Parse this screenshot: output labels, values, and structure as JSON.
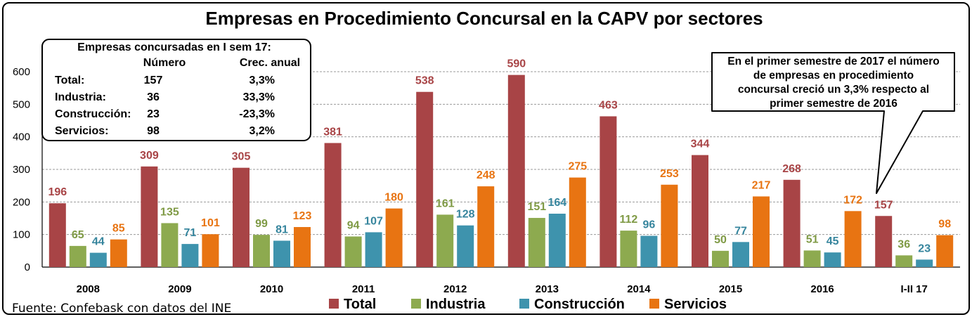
{
  "chart_data": {
    "type": "bar",
    "title": "Empresas en Procedimiento Concursal en la CAPV por sectores",
    "categories": [
      "2008",
      "2009",
      "2010",
      "2011",
      "2012",
      "2013",
      "2014",
      "2015",
      "2016",
      "I-II 17"
    ],
    "series": [
      {
        "name": "Total",
        "color": "#a84446",
        "values": [
          196,
          309,
          305,
          381,
          538,
          590,
          463,
          344,
          268,
          157
        ]
      },
      {
        "name": "Industria",
        "color": "#8daa4f",
        "values": [
          65,
          135,
          99,
          94,
          161,
          151,
          112,
          50,
          51,
          36
        ]
      },
      {
        "name": "Construcción",
        "color": "#3e93ad",
        "values": [
          44,
          71,
          81,
          107,
          128,
          164,
          96,
          77,
          45,
          23
        ]
      },
      {
        "name": "Servicios",
        "color": "#e87412",
        "values": [
          85,
          101,
          123,
          180,
          248,
          275,
          253,
          217,
          172,
          98
        ]
      }
    ],
    "label_colors": [
      "#a84446",
      "#7f9a45",
      "#36859d",
      "#e87412"
    ],
    "yticks": [
      "0",
      "100",
      "200",
      "300",
      "400",
      "500",
      "600"
    ],
    "ylim": [
      0,
      600
    ],
    "grid": true,
    "legend_position": "bottom"
  },
  "source": "Fuente: Confebask con datos del INE",
  "summary_box": {
    "heading": "Empresas concursadas en I sem 17:",
    "col_numero": "Número",
    "col_crec": "Crec. anual",
    "rows": [
      {
        "label": "Total:",
        "numero": "157",
        "crec": "3,3%"
      },
      {
        "label": "Industria:",
        "numero": "36",
        "crec": "33,3%"
      },
      {
        "label": "Construcción:",
        "numero": "23",
        "crec": "-23,3%"
      },
      {
        "label": "Servicios:",
        "numero": "98",
        "crec": "3,2%"
      }
    ]
  },
  "callout": {
    "lines": [
      "En el primer semestre de 2017 el número",
      "de empresas en procedimiento",
      "concursal creció un 3,3% respecto al",
      "primer semestre de 2016"
    ]
  }
}
